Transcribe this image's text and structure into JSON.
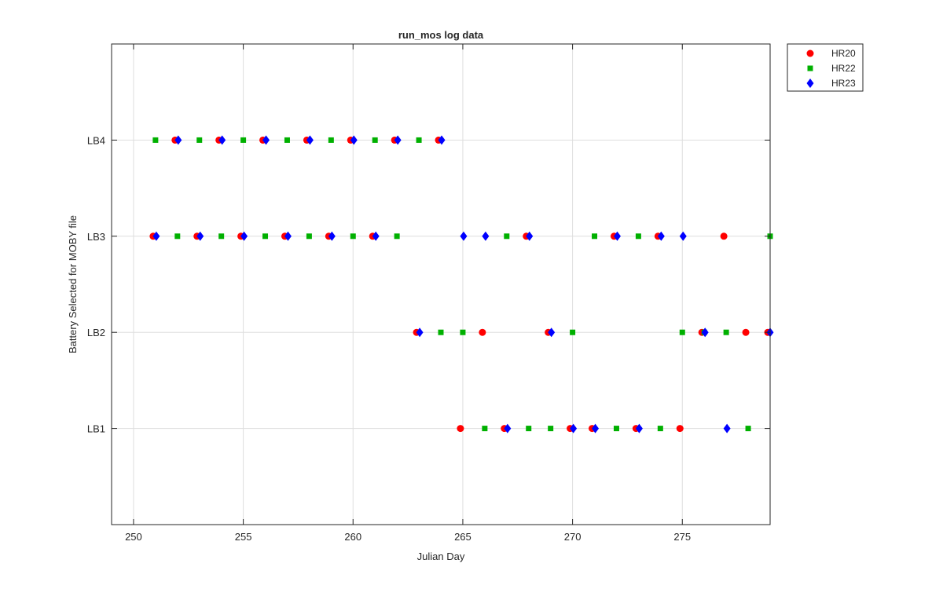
{
  "chart_data": {
    "type": "scatter",
    "title": "run_mos log data",
    "xlabel": "Julian Day",
    "ylabel": "Battery Selected for MOBY file",
    "xlim": [
      249,
      279
    ],
    "ylim": [
      0,
      5
    ],
    "xticks": [
      250,
      255,
      260,
      265,
      270,
      275
    ],
    "yticks": [
      1,
      2,
      3,
      4
    ],
    "ytick_labels": [
      "LB1",
      "LB2",
      "LB3",
      "LB4"
    ],
    "grid": true,
    "legend_position": "outside-top-right",
    "series": [
      {
        "name": "HR20",
        "marker": "circle",
        "color": "#ff0000",
        "points": [
          [
            251,
            3
          ],
          [
            252,
            4
          ],
          [
            253,
            3
          ],
          [
            254,
            4
          ],
          [
            255,
            3
          ],
          [
            256,
            4
          ],
          [
            257,
            3
          ],
          [
            258,
            4
          ],
          [
            259,
            3
          ],
          [
            260,
            4
          ],
          [
            261,
            3
          ],
          [
            262,
            4
          ],
          [
            263,
            2
          ],
          [
            264,
            4
          ],
          [
            265,
            1
          ],
          [
            266,
            2
          ],
          [
            267,
            1
          ],
          [
            268,
            3
          ],
          [
            269,
            2
          ],
          [
            270,
            1
          ],
          [
            271,
            1
          ],
          [
            272,
            3
          ],
          [
            273,
            1
          ],
          [
            274,
            3
          ],
          [
            275,
            1
          ],
          [
            276,
            2
          ],
          [
            277,
            3
          ],
          [
            278,
            2
          ],
          [
            279,
            2
          ]
        ]
      },
      {
        "name": "HR22",
        "marker": "square",
        "color": "#00b000",
        "points": [
          [
            251,
            4
          ],
          [
            252,
            3
          ],
          [
            253,
            4
          ],
          [
            254,
            3
          ],
          [
            255,
            4
          ],
          [
            256,
            3
          ],
          [
            257,
            4
          ],
          [
            258,
            3
          ],
          [
            259,
            4
          ],
          [
            260,
            3
          ],
          [
            261,
            4
          ],
          [
            262,
            3
          ],
          [
            263,
            4
          ],
          [
            264,
            2
          ],
          [
            265,
            2
          ],
          [
            266,
            1
          ],
          [
            267,
            3
          ],
          [
            268,
            1
          ],
          [
            269,
            1
          ],
          [
            270,
            2
          ],
          [
            271,
            3
          ],
          [
            272,
            1
          ],
          [
            273,
            3
          ],
          [
            274,
            1
          ],
          [
            275,
            2
          ],
          [
            276,
            2
          ],
          [
            277,
            2
          ],
          [
            278,
            1
          ],
          [
            279,
            3
          ]
        ]
      },
      {
        "name": "HR23",
        "marker": "diamond",
        "color": "#0000ff",
        "points": [
          [
            251,
            3
          ],
          [
            252,
            4
          ],
          [
            253,
            3
          ],
          [
            254,
            4
          ],
          [
            255,
            3
          ],
          [
            256,
            4
          ],
          [
            257,
            3
          ],
          [
            258,
            4
          ],
          [
            259,
            3
          ],
          [
            260,
            4
          ],
          [
            261,
            3
          ],
          [
            262,
            4
          ],
          [
            263,
            2
          ],
          [
            264,
            4
          ],
          [
            265,
            3
          ],
          [
            266,
            3
          ],
          [
            267,
            1
          ],
          [
            268,
            3
          ],
          [
            269,
            2
          ],
          [
            270,
            1
          ],
          [
            271,
            1
          ],
          [
            272,
            3
          ],
          [
            273,
            1
          ],
          [
            274,
            3
          ],
          [
            275,
            3
          ],
          [
            276,
            2
          ],
          [
            277,
            1
          ],
          [
            279,
            2
          ]
        ]
      }
    ]
  }
}
